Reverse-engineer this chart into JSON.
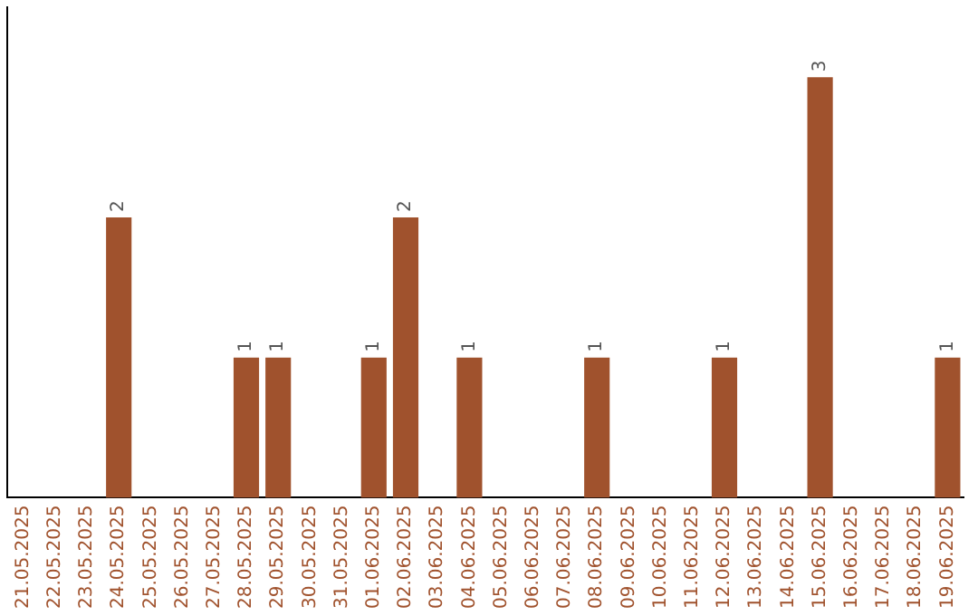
{
  "chart_data": {
    "type": "bar",
    "categories": [
      "21.05.2025",
      "22.05.2025",
      "23.05.2025",
      "24.05.2025",
      "25.05.2025",
      "26.05.2025",
      "27.05.2025",
      "28.05.2025",
      "29.05.2025",
      "30.05.2025",
      "31.05.2025",
      "01.06.2025",
      "02.06.2025",
      "03.06.2025",
      "04.06.2025",
      "05.06.2025",
      "06.06.2025",
      "07.06.2025",
      "08.06.2025",
      "09.06.2025",
      "10.06.2025",
      "11.06.2025",
      "12.06.2025",
      "13.06.2025",
      "14.06.2025",
      "15.06.2025",
      "16.06.2025",
      "17.06.2025",
      "18.06.2025",
      "19.06.2025"
    ],
    "values": [
      0,
      0,
      0,
      2,
      0,
      0,
      0,
      1,
      1,
      0,
      0,
      1,
      2,
      0,
      1,
      0,
      0,
      0,
      1,
      0,
      0,
      0,
      1,
      0,
      0,
      3,
      0,
      0,
      0,
      1
    ],
    "value_labels": [
      null,
      null,
      null,
      "2",
      null,
      null,
      null,
      "1",
      "1",
      null,
      null,
      "1",
      "2",
      null,
      "1",
      null,
      null,
      null,
      "1",
      null,
      null,
      null,
      "1",
      null,
      null,
      "3",
      null,
      null,
      null,
      "1"
    ],
    "color": "#a0522d",
    "tick_labels": "x",
    "grid": false,
    "legend": false
  }
}
